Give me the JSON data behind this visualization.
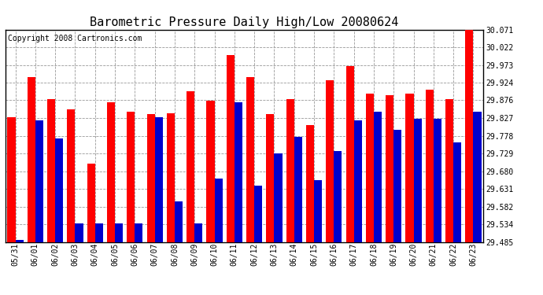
{
  "title": "Barometric Pressure Daily High/Low 20080624",
  "copyright": "Copyright 2008 Cartronics.com",
  "dates": [
    "05/31",
    "06/01",
    "06/02",
    "06/03",
    "06/04",
    "06/05",
    "06/06",
    "06/07",
    "06/08",
    "06/09",
    "06/10",
    "06/11",
    "06/12",
    "06/13",
    "06/14",
    "06/15",
    "06/16",
    "06/17",
    "06/18",
    "06/19",
    "06/20",
    "06/21",
    "06/22",
    "06/23"
  ],
  "highs": [
    29.83,
    29.94,
    29.88,
    29.85,
    29.7,
    29.87,
    29.845,
    29.838,
    29.84,
    29.9,
    29.875,
    30.0,
    29.94,
    29.838,
    29.88,
    29.808,
    29.93,
    29.97,
    29.895,
    29.89,
    29.895,
    29.905,
    29.88,
    30.071
  ],
  "lows": [
    29.49,
    29.82,
    29.77,
    29.536,
    29.537,
    29.536,
    29.536,
    29.83,
    29.597,
    29.536,
    29.66,
    29.87,
    29.64,
    29.73,
    29.775,
    29.655,
    29.735,
    29.82,
    29.845,
    29.795,
    29.825,
    29.825,
    29.76,
    29.845
  ],
  "high_color": "#ff0000",
  "low_color": "#0000cc",
  "background_color": "#ffffff",
  "grid_color": "#999999",
  "y_ticks": [
    29.485,
    29.534,
    29.582,
    29.631,
    29.68,
    29.729,
    29.778,
    29.827,
    29.876,
    29.924,
    29.973,
    30.022,
    30.071
  ],
  "ylim": [
    29.485,
    30.071
  ],
  "bar_width": 0.4,
  "title_fontsize": 11,
  "copyright_fontsize": 7,
  "tick_fontsize": 7
}
